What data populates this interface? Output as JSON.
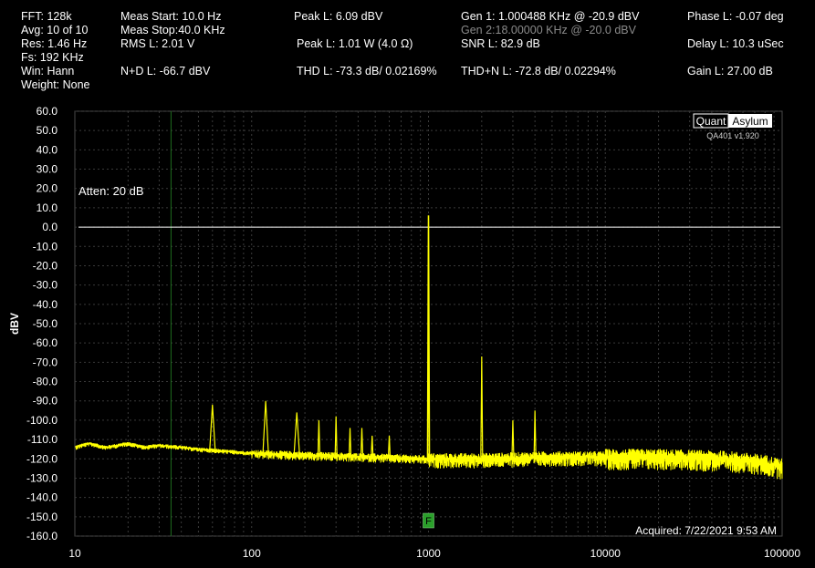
{
  "stats": {
    "fft": "FFT: 128k",
    "avg": "Avg: 10 of 10",
    "res": "Res: 1.46 Hz",
    "fs": "Fs: 192 KHz",
    "win": "Win: Hann",
    "weight": "Weight: None",
    "meas_start": "Meas Start: 10.0 Hz",
    "meas_stop": "Meas Stop:40.0 KHz",
    "rms_l": "RMS L: 2.01 V",
    "n_d_l": "N+D L: -66.7 dBV",
    "peak_l": "Peak L: 6.09 dBV",
    "peak_l_w": "Peak L: 1.01 W (4.0 Ω)",
    "thd_l": "THD L: -73.3 dB/ 0.02169%",
    "gen1": "Gen 1: 1.000488 KHz @ -20.9  dBV",
    "gen2": "Gen 2:18.00000 KHz @ -20.0  dBV",
    "snr_l": "SNR L: 82.9 dB",
    "thdn_l": "THD+N L: -72.8 dB/ 0.02294%",
    "phase_l": "Phase L: -0.07 deg",
    "delay_l": "Delay L: 10.3 uSec",
    "gain_l": "Gain L: 27.00 dB"
  },
  "logo": {
    "quant": "Quant",
    "asylum": "Asylum",
    "version": "QA401 v1.920"
  },
  "atten_label": "Atten: 20 dB",
  "acquired": "Acquired: 7/22/2021  9:53 AM",
  "marker_label": "F",
  "colors": {
    "background": "#000000",
    "grid": "#3a3a3a",
    "trace": "#ffff00",
    "cursor_line": "#1f6b1f",
    "reference_line": "#ffffff",
    "marker": "#2aa02a"
  },
  "chart_data": {
    "type": "line",
    "ylabel": "dBV",
    "x_scale": "log",
    "xlim": [
      10,
      100000
    ],
    "ylim": [
      -160,
      60
    ],
    "x_ticks": [
      "10",
      "100",
      "1000",
      "10000",
      "100000"
    ],
    "y_ticks": [
      "60.0",
      "50.0",
      "40.0",
      "30.0",
      "20.0",
      "10.0",
      "0.0",
      "-10.0",
      "-20.0",
      "-30.0",
      "-40.0",
      "-50.0",
      "-60.0",
      "-70.0",
      "-80.0",
      "-90.0",
      "-100.0",
      "-110.0",
      "-120.0",
      "-130.0",
      "-140.0",
      "-150.0",
      "-160.0"
    ],
    "grid": true,
    "reference_level_dbv": 0,
    "cursor_hz": 35,
    "marker_hz": 1000,
    "noise_floor": [
      {
        "x": 10,
        "y": -114
      },
      {
        "x": 12,
        "y": -112
      },
      {
        "x": 15,
        "y": -114
      },
      {
        "x": 20,
        "y": -112
      },
      {
        "x": 25,
        "y": -114
      },
      {
        "x": 30,
        "y": -113
      },
      {
        "x": 40,
        "y": -114
      },
      {
        "x": 50,
        "y": -115
      },
      {
        "x": 70,
        "y": -116
      },
      {
        "x": 100,
        "y": -117
      },
      {
        "x": 200,
        "y": -118
      },
      {
        "x": 500,
        "y": -119
      },
      {
        "x": 1000,
        "y": -120
      },
      {
        "x": 2000,
        "y": -120
      },
      {
        "x": 5000,
        "y": -119
      },
      {
        "x": 10000,
        "y": -119
      },
      {
        "x": 20000,
        "y": -119
      },
      {
        "x": 50000,
        "y": -120
      },
      {
        "x": 80000,
        "y": -122
      },
      {
        "x": 100000,
        "y": -124
      }
    ],
    "peaks": [
      {
        "x": 60,
        "y": -92
      },
      {
        "x": 120,
        "y": -90
      },
      {
        "x": 180,
        "y": -96
      },
      {
        "x": 240,
        "y": -100
      },
      {
        "x": 300,
        "y": -98
      },
      {
        "x": 360,
        "y": -104
      },
      {
        "x": 420,
        "y": -104
      },
      {
        "x": 480,
        "y": -108
      },
      {
        "x": 600,
        "y": -108
      },
      {
        "x": 1000,
        "y": 6.09
      },
      {
        "x": 2000,
        "y": -67
      },
      {
        "x": 3000,
        "y": -100
      },
      {
        "x": 4000,
        "y": -95
      }
    ]
  }
}
